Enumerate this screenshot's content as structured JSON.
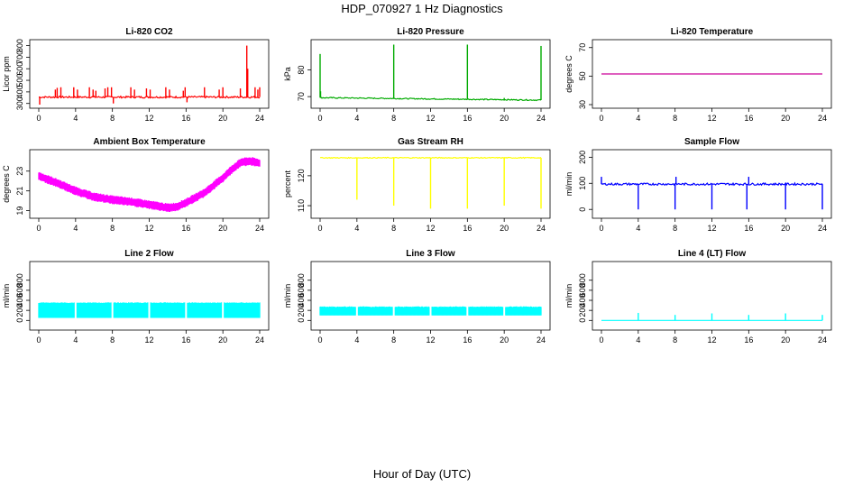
{
  "figure": {
    "title": "HDP_070927  1 Hz Diagnostics",
    "xlabel": "Hour of Day (UTC)"
  },
  "chart_data": [
    {
      "type": "line",
      "title": "Li-820 CO2",
      "ylabel": "Licor ppm",
      "color": "#ff0000",
      "xlim": [
        0,
        24
      ],
      "ylim": [
        290,
        820
      ],
      "xticks": [
        0,
        4,
        8,
        12,
        16,
        20,
        24
      ],
      "yticks": [
        300,
        400,
        500,
        600,
        700,
        800
      ],
      "baseline": 355,
      "noise": 8,
      "spikes": [
        [
          0.1,
          290
        ],
        [
          1.8,
          420
        ],
        [
          2.0,
          435
        ],
        [
          2.4,
          440
        ],
        [
          3.8,
          440
        ],
        [
          4.2,
          420
        ],
        [
          5.5,
          440
        ],
        [
          5.9,
          420
        ],
        [
          6.2,
          410
        ],
        [
          7.2,
          430
        ],
        [
          7.5,
          440
        ],
        [
          7.9,
          440
        ],
        [
          8.1,
          300
        ],
        [
          10.0,
          440
        ],
        [
          10.4,
          420
        ],
        [
          11.7,
          430
        ],
        [
          12.1,
          420
        ],
        [
          13.8,
          440
        ],
        [
          14.2,
          420
        ],
        [
          15.7,
          410
        ],
        [
          15.9,
          440
        ],
        [
          16.1,
          310
        ],
        [
          18.0,
          440
        ],
        [
          19.6,
          420
        ],
        [
          20.0,
          440
        ],
        [
          21.9,
          430
        ],
        [
          22.6,
          800
        ],
        [
          22.7,
          600
        ],
        [
          23.5,
          440
        ],
        [
          23.8,
          420
        ],
        [
          24.0,
          440
        ]
      ]
    },
    {
      "type": "line",
      "title": "Li-820 Pressure",
      "ylabel": "kPa",
      "color": "#00aa00",
      "xlim": [
        0,
        24
      ],
      "ylim": [
        67,
        90
      ],
      "xticks": [
        0,
        4,
        8,
        12,
        16,
        20,
        24
      ],
      "yticks": [
        70,
        80
      ],
      "baseline_start": 69.6,
      "baseline_end": 68.7,
      "noise": 0.2,
      "spikes": [
        [
          0.0,
          86
        ],
        [
          0.05,
          72
        ],
        [
          8.0,
          89.5
        ],
        [
          16.0,
          89.5
        ],
        [
          20.0,
          69.5
        ],
        [
          24.0,
          89
        ]
      ]
    },
    {
      "type": "line",
      "title": "Li-820 Temperature",
      "ylabel": "degrees C",
      "color": "#cc0099",
      "xlim": [
        0,
        24
      ],
      "ylim": [
        30,
        73
      ],
      "xticks": [
        0,
        4,
        8,
        12,
        16,
        20,
        24
      ],
      "yticks": [
        30,
        50,
        70
      ],
      "baseline": 51.5,
      "noise": 0,
      "spikes": []
    },
    {
      "type": "band",
      "title": "Ambient Box Temperature",
      "ylabel": "degrees C",
      "color": "#ff00ff",
      "xlim": [
        0,
        24
      ],
      "ylim": [
        18.6,
        24.8
      ],
      "xticks": [
        0,
        4,
        8,
        12,
        16,
        20,
        24
      ],
      "yticks": [
        19,
        21,
        23
      ],
      "curve_x": [
        0,
        2,
        4,
        6,
        8,
        10,
        12,
        14,
        15,
        16,
        18,
        20,
        21,
        22,
        23,
        24
      ],
      "curve_y": [
        22.5,
        21.8,
        21.0,
        20.4,
        20.1,
        19.9,
        19.6,
        19.3,
        19.4,
        19.8,
        20.8,
        22.3,
        23.2,
        23.9,
        24.0,
        23.8
      ],
      "band_halfwidth": 0.45,
      "spikes": []
    },
    {
      "type": "line",
      "title": "Gas Stream RH",
      "ylabel": "percent",
      "color": "#ffff00",
      "xlim": [
        0,
        24
      ],
      "ylim": [
        107,
        127.5
      ],
      "xticks": [
        0,
        4,
        8,
        12,
        16,
        20,
        24
      ],
      "yticks": [
        110,
        120
      ],
      "baseline": 126,
      "noise": 0.15,
      "spikes": [
        [
          4.0,
          112
        ],
        [
          8.0,
          110
        ],
        [
          12.0,
          109
        ],
        [
          16.0,
          109
        ],
        [
          20.0,
          110
        ],
        [
          24.0,
          109
        ]
      ]
    },
    {
      "type": "line",
      "title": "Sample Flow",
      "ylabel": "ml/min",
      "color": "#0000ff",
      "xlim": [
        0,
        24
      ],
      "ylim": [
        -20,
        215
      ],
      "xticks": [
        0,
        4,
        8,
        12,
        16,
        20,
        24
      ],
      "yticks": [
        0,
        100,
        200
      ],
      "baseline": 97,
      "noise": 4,
      "spikes": [
        [
          0.0,
          125
        ],
        [
          4.0,
          0
        ],
        [
          8.0,
          0
        ],
        [
          8.1,
          125
        ],
        [
          12.0,
          0
        ],
        [
          15.8,
          0
        ],
        [
          16.0,
          125
        ],
        [
          20.0,
          0
        ],
        [
          24.0,
          0
        ]
      ]
    },
    {
      "type": "band",
      "title": "Line 2 Flow",
      "ylabel": "ml/min",
      "color": "#00ffff",
      "xlim": [
        0,
        24
      ],
      "ylim": [
        -120,
        1100
      ],
      "xticks": [
        0,
        4,
        8,
        12,
        16,
        20,
        24
      ],
      "yticks": [
        0,
        200,
        400,
        600,
        800
      ],
      "curve_x": [
        0,
        24
      ],
      "curve_y": [
        205,
        205
      ],
      "band_low": 50,
      "band_high": 360,
      "gaps": [
        4,
        8,
        12,
        16,
        20
      ],
      "spikes": []
    },
    {
      "type": "band",
      "title": "Line 3 Flow",
      "ylabel": "ml/min",
      "color": "#00ffff",
      "xlim": [
        0,
        24
      ],
      "ylim": [
        -120,
        1100
      ],
      "xticks": [
        0,
        4,
        8,
        12,
        16,
        20,
        24
      ],
      "yticks": [
        0,
        200,
        400,
        600,
        800
      ],
      "curve_x": [
        0,
        24
      ],
      "curve_y": [
        190,
        190
      ],
      "band_low": 100,
      "band_high": 280,
      "gaps": [
        4,
        8,
        12,
        16,
        20
      ],
      "spikes": []
    },
    {
      "type": "line",
      "title": "Line 4 (LT) Flow",
      "ylabel": "ml/min",
      "color": "#00ffff",
      "xlim": [
        0,
        24
      ],
      "ylim": [
        -120,
        1100
      ],
      "xticks": [
        0,
        4,
        8,
        12,
        16,
        20,
        24
      ],
      "yticks": [
        0,
        200,
        400,
        600,
        800
      ],
      "baseline": 0,
      "noise": 0,
      "spikes": [
        [
          4.0,
          150
        ],
        [
          8.0,
          110
        ],
        [
          12.0,
          140
        ],
        [
          16.0,
          110
        ],
        [
          20.0,
          140
        ],
        [
          24.0,
          110
        ]
      ]
    }
  ]
}
